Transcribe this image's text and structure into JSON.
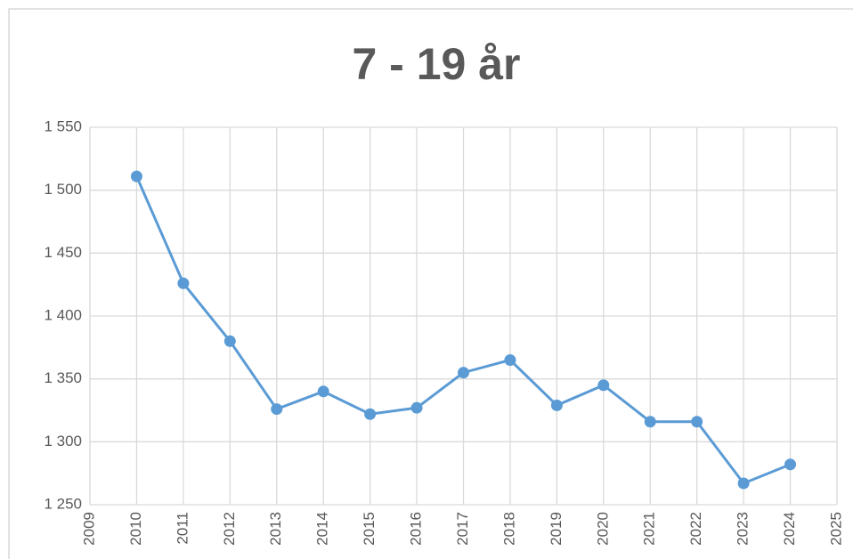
{
  "chart_data": {
    "type": "line",
    "title": "7 - 19 år",
    "x": [
      2010,
      2011,
      2012,
      2013,
      2014,
      2015,
      2016,
      2017,
      2018,
      2019,
      2020,
      2021,
      2022,
      2023,
      2024
    ],
    "series": [
      {
        "name": "7 - 19 år",
        "color": "#5b9bd5",
        "values": [
          1511,
          1426,
          1380,
          1326,
          1340,
          1322,
          1327,
          1355,
          1365,
          1329,
          1345,
          1316,
          1316,
          1267,
          1282
        ]
      }
    ],
    "xlim": [
      2009,
      2025
    ],
    "xticks": [
      2009,
      2010,
      2011,
      2012,
      2013,
      2014,
      2015,
      2016,
      2017,
      2018,
      2019,
      2020,
      2021,
      2022,
      2023,
      2024,
      2025
    ],
    "ylim": [
      1250,
      1550
    ],
    "yticks": [
      {
        "value": 1250,
        "label": "1 250"
      },
      {
        "value": 1300,
        "label": "1 300"
      },
      {
        "value": 1350,
        "label": "1 350"
      },
      {
        "value": 1400,
        "label": "1 400"
      },
      {
        "value": 1450,
        "label": "1 450"
      },
      {
        "value": 1500,
        "label": "1 500"
      },
      {
        "value": 1550,
        "label": "1 550"
      }
    ],
    "grid": true
  }
}
